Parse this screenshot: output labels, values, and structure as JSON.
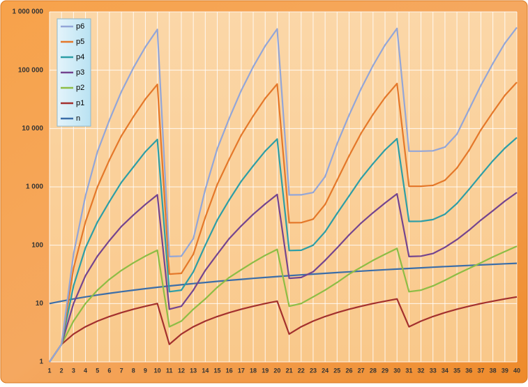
{
  "chart_data": {
    "type": "line",
    "x": [
      1,
      2,
      3,
      4,
      5,
      6,
      7,
      8,
      9,
      10,
      11,
      12,
      13,
      14,
      15,
      16,
      17,
      18,
      19,
      20,
      21,
      22,
      23,
      24,
      25,
      26,
      27,
      28,
      29,
      30,
      31,
      32,
      33,
      34,
      35,
      36,
      37,
      38,
      39,
      40
    ],
    "xlim": [
      1,
      40
    ],
    "ylim": [
      1,
      1000000
    ],
    "log_y": true,
    "yticks": [
      1,
      10,
      100,
      {
        "value": 1000,
        "label": "1 000"
      },
      {
        "value": 10000,
        "label": "10 000"
      },
      {
        "value": 100000,
        "label": "100 000"
      },
      {
        "value": 1000000,
        "label": "1 000 000"
      }
    ],
    "grid": true,
    "legend": "top-left",
    "series": [
      {
        "name": "p6",
        "color": "#93a6d8",
        "values": [
          1,
          2,
          70,
          700,
          4000,
          14000,
          43000,
          110000,
          250000,
          500000,
          64,
          65,
          130,
          900,
          4500,
          15000,
          45000,
          115000,
          260000,
          510000,
          729,
          730,
          800,
          1500,
          5500,
          17000,
          48000,
          120000,
          270000,
          520000,
          4096,
          4097,
          4150,
          4800,
          8000,
          21000,
          55000,
          130000,
          290000,
          540000
        ]
      },
      {
        "name": "p5",
        "color": "#e4782a",
        "values": [
          1,
          2,
          40,
          250,
          1000,
          2900,
          7500,
          16000,
          32000,
          57000,
          32,
          33,
          70,
          300,
          1100,
          3000,
          7700,
          16500,
          33000,
          58000,
          243,
          244,
          280,
          500,
          1300,
          3400,
          8300,
          17500,
          34000,
          59000,
          1024,
          1025,
          1060,
          1300,
          2100,
          4200,
          9500,
          19000,
          37000,
          62000
        ]
      },
      {
        "name": "p4",
        "color": "#2d9ea6",
        "values": [
          1,
          2,
          20,
          90,
          250,
          560,
          1200,
          2200,
          4000,
          6500,
          16,
          17,
          35,
          100,
          270,
          600,
          1250,
          2300,
          4100,
          6600,
          81,
          82,
          100,
          170,
          350,
          700,
          1400,
          2500,
          4300,
          6700,
          256,
          257,
          275,
          340,
          520,
          900,
          1600,
          2800,
          4600,
          7000
        ]
      },
      {
        "name": "p3",
        "color": "#74448f",
        "values": [
          1,
          2,
          10,
          30,
          65,
          120,
          210,
          330,
          500,
          730,
          8,
          9,
          17,
          37,
          70,
          130,
          215,
          340,
          510,
          740,
          27,
          28,
          35,
          55,
          90,
          150,
          240,
          360,
          530,
          760,
          64,
          65,
          72,
          92,
          125,
          180,
          270,
          390,
          570,
          800
        ]
      },
      {
        "name": "p2",
        "color": "#8dbd45",
        "values": [
          1,
          2,
          5,
          10,
          17,
          26,
          37,
          50,
          65,
          82,
          4,
          5,
          8,
          12,
          19,
          28,
          38,
          51,
          67,
          85,
          9,
          10,
          13,
          17,
          23,
          32,
          42,
          55,
          70,
          88,
          16,
          17,
          20,
          25,
          32,
          40,
          50,
          63,
          78,
          96
        ]
      },
      {
        "name": "p1",
        "color": "#a3302e",
        "values": [
          1,
          2,
          3,
          4,
          5,
          6,
          7,
          8,
          9,
          10,
          2,
          3,
          4,
          5,
          6,
          7,
          8,
          9,
          10,
          11,
          3,
          4,
          5,
          6,
          7,
          8,
          9,
          10,
          11,
          12,
          4,
          5,
          6,
          7,
          8,
          9,
          10,
          11,
          12,
          13
        ]
      },
      {
        "name": "n",
        "color": "#3c6ea8",
        "values": [
          10,
          11,
          12,
          13,
          14,
          15,
          16,
          17,
          18,
          19,
          20,
          21,
          22,
          23,
          24,
          25,
          26,
          27,
          28,
          29,
          30,
          31,
          32,
          33,
          34,
          35,
          36,
          37,
          38,
          39,
          40,
          41,
          42,
          43,
          44,
          45,
          46,
          47,
          48,
          49
        ]
      }
    ]
  }
}
